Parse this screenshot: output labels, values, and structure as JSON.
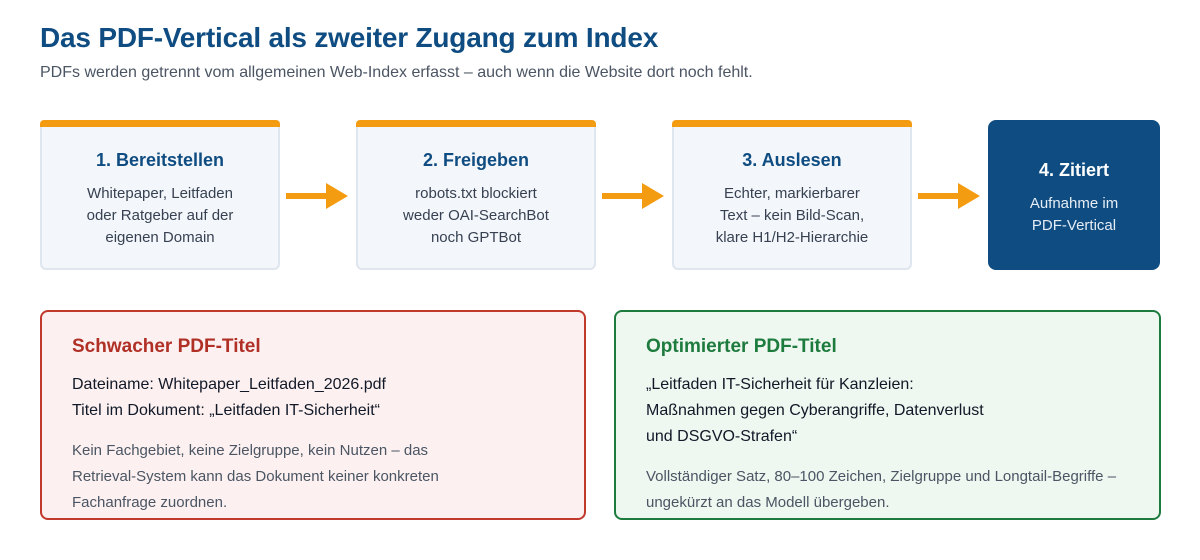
{
  "header": {
    "title": "Das PDF-Vertical als zweiter Zugang zum Index",
    "subtitle": "PDFs werden getrennt vom allgemeinen Web-Index erfasst – auch wenn die Website dort noch fehlt."
  },
  "steps": [
    {
      "title": "1. Bereitstellen",
      "lines": [
        "Whitepaper, Leitfaden",
        "oder Ratgeber auf der",
        "eigenen Domain"
      ]
    },
    {
      "title": "2. Freigeben",
      "lines": [
        "robots.txt blockiert",
        "weder OAI-SearchBot",
        "noch GPTBot"
      ]
    },
    {
      "title": "3. Auslesen",
      "lines": [
        "Echter, markierbarer",
        "Text – kein Bild-Scan,",
        "klare H1/H2-Hierarchie"
      ]
    },
    {
      "title": "4. Zitiert",
      "lines": [
        "Aufnahme im",
        "PDF-Vertical"
      ]
    }
  ],
  "weak": {
    "title": "Schwacher PDF-Titel",
    "lines": [
      "Dateiname: Whitepaper_Leitfaden_2026.pdf",
      "Titel im Dokument: „Leitfaden IT-Sicherheit“"
    ],
    "note": "Kein Fachgebiet, keine Zielgruppe, kein Nutzen – das Retrieval-System kann das Dokument keiner konkreten Fachanfrage zuordnen."
  },
  "strong": {
    "title": "Optimierter PDF-Titel",
    "lines": [
      "„Leitfaden IT-Sicherheit für Kanzleien:",
      "Maßnahmen gegen Cyberangriffe, Datenverlust",
      "und DSGVO-Strafen“"
    ],
    "note": "Vollständiger Satz, 80–100 Zeichen, Zielgruppe und Longtail-Begriffe – ungekürzt an das Modell übergeben."
  },
  "colors": {
    "accent": "#0f4c81",
    "arrow": "#f39c12",
    "bad": "#c0392b",
    "good": "#1e7b3e"
  },
  "icons": {
    "arrow": "arrow-right-icon"
  }
}
